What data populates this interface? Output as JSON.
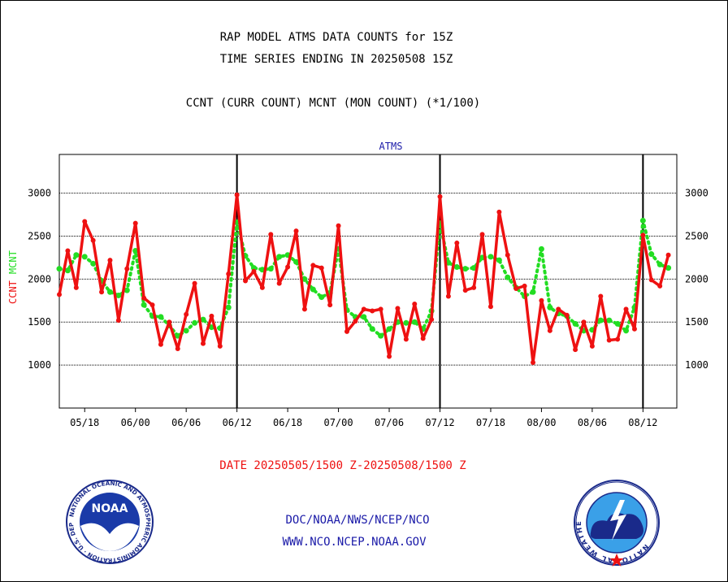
{
  "header": {
    "title_line1": "RAP MODEL ATMS DATA COUNTS for 15Z",
    "title_line2": "TIME SERIES ENDING IN 20250508 15Z",
    "subtitle": "CCNT (CURR COUNT) MCNT (MON COUNT) (*1/100)"
  },
  "footer": {
    "date_range": "DATE 20250505/1500 Z-20250508/1500 Z",
    "org_line1": "DOC/NOAA/NWS/NCEP/NCO",
    "org_line2": "WWW.NCO.NCEP.NOAA.GOV"
  },
  "logos": {
    "left": "NOAA",
    "left_ring": "NATIONAL OCEANIC AND ATMOSPHERIC ADMINISTRATION · U.S. DEPARTMENT OF COMMERCE",
    "right_ring": "NATIONAL WEATHER SERVICE"
  },
  "colors": {
    "ccnt": "#ee1111",
    "mcnt": "#22dd22",
    "panel_title": "#1a1aa8"
  },
  "chart_data": {
    "type": "line",
    "title": "ATMS",
    "ylabel_ccnt": "CCNT",
    "ylabel_mcnt": "MCNT",
    "ylim": [
      500,
      3450
    ],
    "yticks": [
      1000,
      1500,
      2000,
      2500,
      3000
    ],
    "xlim": [
      0,
      73
    ],
    "xticks": [
      {
        "x": 3,
        "label": "05/18"
      },
      {
        "x": 9,
        "label": "06/00"
      },
      {
        "x": 15,
        "label": "06/06"
      },
      {
        "x": 21,
        "label": "06/12"
      },
      {
        "x": 27,
        "label": "06/18"
      },
      {
        "x": 33,
        "label": "07/00"
      },
      {
        "x": 39,
        "label": "07/06"
      },
      {
        "x": 45,
        "label": "07/12"
      },
      {
        "x": 51,
        "label": "07/18"
      },
      {
        "x": 57,
        "label": "08/00"
      },
      {
        "x": 63,
        "label": "08/06"
      },
      {
        "x": 69,
        "label": "08/12"
      }
    ],
    "day_boundaries": [
      21,
      45,
      69
    ],
    "grid": true,
    "series": [
      {
        "name": "CCNT",
        "values": [
          1820,
          2330,
          1900,
          2670,
          2450,
          1850,
          2220,
          1520,
          2120,
          2650,
          1780,
          1700,
          1240,
          1500,
          1190,
          1590,
          1950,
          1250,
          1570,
          1220,
          2060,
          2980,
          1980,
          2090,
          1900,
          2520,
          1950,
          2140,
          2560,
          1650,
          2160,
          2130,
          1700,
          2620,
          1390,
          1510,
          1650,
          1630,
          1650,
          1100,
          1660,
          1300,
          1710,
          1310,
          1530,
          2960,
          1800,
          2420,
          1870,
          1900,
          2520,
          1680,
          2780,
          2280,
          1890,
          1920,
          1030,
          1750,
          1400,
          1650,
          1580,
          1180,
          1500,
          1220,
          1800,
          1290,
          1300,
          1650,
          1420,
          2510,
          1990,
          1920,
          2280
        ]
      },
      {
        "name": "MCNT",
        "values": [
          2120,
          2100,
          2280,
          2260,
          2180,
          1980,
          1850,
          1810,
          1870,
          2330,
          1700,
          1570,
          1560,
          1460,
          1340,
          1400,
          1490,
          1530,
          1440,
          1430,
          1670,
          2660,
          2270,
          2130,
          2110,
          2120,
          2260,
          2280,
          2200,
          2000,
          1880,
          1790,
          1840,
          2350,
          1640,
          1560,
          1560,
          1420,
          1340,
          1420,
          1500,
          1490,
          1500,
          1420,
          1630,
          2650,
          2190,
          2140,
          2120,
          2130,
          2250,
          2260,
          2220,
          2020,
          1900,
          1800,
          1850,
          2350,
          1670,
          1600,
          1570,
          1480,
          1400,
          1410,
          1520,
          1520,
          1480,
          1400,
          1670,
          2680,
          2290,
          2170,
          2130
        ]
      }
    ]
  }
}
